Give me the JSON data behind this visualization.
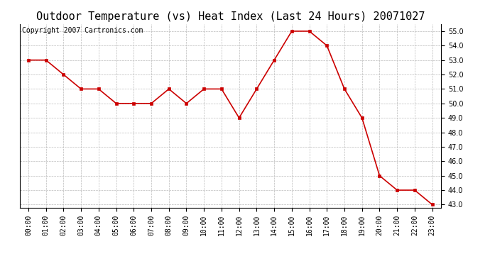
{
  "title": "Outdoor Temperature (vs) Heat Index (Last 24 Hours) 20071027",
  "copyright_text": "Copyright 2007 Cartronics.com",
  "hours": [
    "00:00",
    "01:00",
    "02:00",
    "03:00",
    "04:00",
    "05:00",
    "06:00",
    "07:00",
    "08:00",
    "09:00",
    "10:00",
    "11:00",
    "12:00",
    "13:00",
    "14:00",
    "15:00",
    "16:00",
    "17:00",
    "18:00",
    "19:00",
    "20:00",
    "21:00",
    "22:00",
    "23:00"
  ],
  "values": [
    53.0,
    53.0,
    52.0,
    51.0,
    51.0,
    50.0,
    50.0,
    50.0,
    51.0,
    50.0,
    51.0,
    51.0,
    49.0,
    51.0,
    53.0,
    55.0,
    55.0,
    54.0,
    51.0,
    49.0,
    45.0,
    44.0,
    44.0,
    43.0
  ],
  "line_color": "#cc0000",
  "marker": "s",
  "marker_size": 3,
  "background_color": "#ffffff",
  "plot_bg_color": "#ffffff",
  "grid_color": "#bbbbbb",
  "ylim_min": 42.8,
  "ylim_max": 55.5,
  "yticks": [
    43.0,
    44.0,
    45.0,
    46.0,
    47.0,
    48.0,
    49.0,
    50.0,
    51.0,
    52.0,
    53.0,
    54.0,
    55.0
  ],
  "title_fontsize": 11,
  "tick_fontsize": 7,
  "copyright_fontsize": 7
}
